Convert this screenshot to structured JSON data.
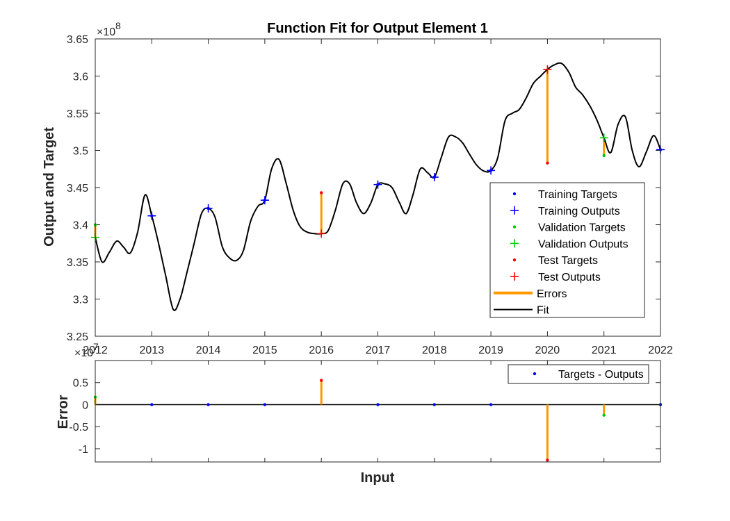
{
  "figure": {
    "title": "Function Fit for Output Element 1",
    "x_axis_label": "Input"
  },
  "chart_data": [
    {
      "type": "line",
      "title": "Function Fit for Output Element 1",
      "ylabel": "Output and Target",
      "xlabel": "",
      "xlim": [
        2012,
        2022
      ],
      "ylim": [
        3.25,
        3.65
      ],
      "y_exponent_label": "×10",
      "y_exponent_power": "8",
      "x_ticks": [
        "2012",
        "2013",
        "2014",
        "2015",
        "2016",
        "2017",
        "2018",
        "2019",
        "2020",
        "2021",
        "2022"
      ],
      "y_ticks": [
        "3.25",
        "3.3",
        "3.35",
        "3.4",
        "3.45",
        "3.5",
        "3.55",
        "3.6",
        "3.65"
      ],
      "grid": false,
      "legend_position": "lower-right",
      "legend": [
        "Training Targets",
        "Training Outputs",
        "Validation Targets",
        "Validation Outputs",
        "Test Targets",
        "Test Outputs",
        "Errors",
        "Fit"
      ],
      "colors": {
        "training": "#0000ff",
        "validation": "#00cc00",
        "test": "#ff0000",
        "errors": "#ff9900",
        "fit": "#000000"
      },
      "points": [
        {
          "x": 2012,
          "target": 3.4,
          "output": 3.383,
          "set": "validation"
        },
        {
          "x": 2013,
          "target": 3.412,
          "output": 3.412,
          "set": "training"
        },
        {
          "x": 2014,
          "target": 3.422,
          "output": 3.422,
          "set": "training"
        },
        {
          "x": 2015,
          "target": 3.433,
          "output": 3.433,
          "set": "training"
        },
        {
          "x": 2016,
          "target": 3.443,
          "output": 3.388,
          "set": "test"
        },
        {
          "x": 2017,
          "target": 3.454,
          "output": 3.454,
          "set": "training"
        },
        {
          "x": 2018,
          "target": 3.464,
          "output": 3.464,
          "set": "training"
        },
        {
          "x": 2019,
          "target": 3.473,
          "output": 3.473,
          "set": "training"
        },
        {
          "x": 2020,
          "target": 3.483,
          "output": 3.609,
          "set": "test"
        },
        {
          "x": 2021,
          "target": 3.493,
          "output": 3.517,
          "set": "validation"
        },
        {
          "x": 2022,
          "target": 3.501,
          "output": 3.501,
          "set": "training"
        }
      ],
      "fit_curve": {
        "x": [
          2012,
          2012.12,
          2012.25,
          2012.38,
          2012.5,
          2012.62,
          2012.75,
          2012.88,
          2013,
          2013.12,
          2013.25,
          2013.38,
          2013.5,
          2013.62,
          2013.75,
          2013.88,
          2014,
          2014.12,
          2014.25,
          2014.38,
          2014.5,
          2014.62,
          2014.75,
          2014.88,
          2015,
          2015.12,
          2015.25,
          2015.38,
          2015.5,
          2015.62,
          2015.75,
          2015.88,
          2016,
          2016.12,
          2016.25,
          2016.38,
          2016.5,
          2016.62,
          2016.75,
          2016.88,
          2017,
          2017.12,
          2017.25,
          2017.38,
          2017.5,
          2017.62,
          2017.75,
          2017.88,
          2018,
          2018.12,
          2018.25,
          2018.38,
          2018.5,
          2018.62,
          2018.75,
          2018.88,
          2019,
          2019.12,
          2019.25,
          2019.38,
          2019.5,
          2019.62,
          2019.75,
          2019.88,
          2020,
          2020.12,
          2020.25,
          2020.38,
          2020.5,
          2020.62,
          2020.75,
          2020.88,
          2021,
          2021.12,
          2021.25,
          2021.38,
          2021.5,
          2021.62,
          2021.75,
          2021.88,
          2022
        ],
        "y": [
          3.383,
          3.35,
          3.363,
          3.378,
          3.37,
          3.362,
          3.39,
          3.44,
          3.412,
          3.375,
          3.33,
          3.286,
          3.3,
          3.335,
          3.375,
          3.415,
          3.422,
          3.41,
          3.37,
          3.355,
          3.352,
          3.365,
          3.405,
          3.425,
          3.433,
          3.475,
          3.488,
          3.455,
          3.42,
          3.398,
          3.39,
          3.388,
          3.388,
          3.392,
          3.42,
          3.455,
          3.455,
          3.43,
          3.415,
          3.43,
          3.454,
          3.455,
          3.45,
          3.43,
          3.415,
          3.44,
          3.475,
          3.47,
          3.464,
          3.49,
          3.518,
          3.518,
          3.51,
          3.495,
          3.48,
          3.472,
          3.473,
          3.49,
          3.54,
          3.55,
          3.555,
          3.57,
          3.59,
          3.6,
          3.609,
          3.615,
          3.617,
          3.605,
          3.585,
          3.575,
          3.56,
          3.54,
          3.517,
          3.497,
          3.535,
          3.545,
          3.5,
          3.478,
          3.498,
          3.52,
          3.501
        ]
      }
    },
    {
      "type": "scatter",
      "ylabel": "Error",
      "xlabel": "Input",
      "xlim": [
        2012,
        2022
      ],
      "ylim": [
        -1.3,
        1
      ],
      "y_exponent_label": "×10",
      "y_exponent_power": "7",
      "y_ticks": [
        "-1",
        "-0.5",
        "0",
        "0.5"
      ],
      "legend_position": "top-right",
      "legend": [
        "Targets - Outputs"
      ],
      "zero_line": true,
      "errors": [
        {
          "x": 2012,
          "value": 0.17,
          "set": "validation"
        },
        {
          "x": 2013,
          "value": 0,
          "set": "training"
        },
        {
          "x": 2014,
          "value": 0,
          "set": "training"
        },
        {
          "x": 2015,
          "value": 0,
          "set": "training"
        },
        {
          "x": 2016,
          "value": 0.55,
          "set": "test"
        },
        {
          "x": 2017,
          "value": 0,
          "set": "training"
        },
        {
          "x": 2018,
          "value": 0,
          "set": "training"
        },
        {
          "x": 2019,
          "value": 0,
          "set": "training"
        },
        {
          "x": 2020,
          "value": -1.26,
          "set": "test"
        },
        {
          "x": 2021,
          "value": -0.24,
          "set": "validation"
        },
        {
          "x": 2022,
          "value": 0,
          "set": "training"
        }
      ]
    }
  ]
}
